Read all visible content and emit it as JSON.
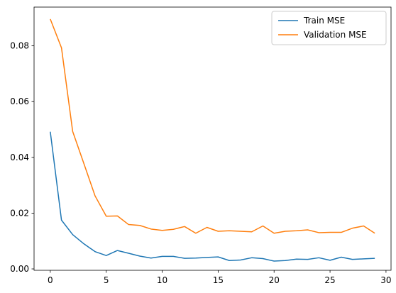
{
  "chart_data": {
    "type": "line",
    "title": "",
    "xlabel": "",
    "ylabel": "",
    "xlim": [
      -1.45,
      30.45
    ],
    "ylim": [
      -0.0005,
      0.0939
    ],
    "x_ticks": [
      0,
      5,
      10,
      15,
      20,
      25,
      30
    ],
    "y_ticks": [
      0.0,
      0.02,
      0.04,
      0.06,
      0.08
    ],
    "x_tick_labels": [
      "0",
      "5",
      "10",
      "15",
      "20",
      "25",
      "30"
    ],
    "y_tick_labels": [
      "0.00",
      "0.02",
      "0.04",
      "0.06",
      "0.08"
    ],
    "grid": false,
    "legend_position": "top-right",
    "x": [
      0,
      1,
      2,
      3,
      4,
      5,
      6,
      7,
      8,
      9,
      10,
      11,
      12,
      13,
      14,
      15,
      16,
      17,
      18,
      19,
      20,
      21,
      22,
      23,
      24,
      25,
      26,
      27,
      28,
      29
    ],
    "series": [
      {
        "name": "Train MSE",
        "color": "#1f77b4",
        "values": [
          0.0492,
          0.0175,
          0.0123,
          0.009,
          0.0062,
          0.0048,
          0.0066,
          0.0056,
          0.0046,
          0.0039,
          0.0045,
          0.0045,
          0.0038,
          0.0039,
          0.0041,
          0.0043,
          0.003,
          0.0032,
          0.004,
          0.0037,
          0.0028,
          0.003,
          0.0035,
          0.0034,
          0.004,
          0.0031,
          0.0042,
          0.0034,
          0.0036,
          0.0038
        ]
      },
      {
        "name": "Validation MSE",
        "color": "#ff7f0e",
        "values": [
          0.0896,
          0.0793,
          0.0493,
          0.0378,
          0.0262,
          0.0189,
          0.019,
          0.0159,
          0.0156,
          0.0143,
          0.0138,
          0.0142,
          0.0152,
          0.0128,
          0.0149,
          0.0135,
          0.0137,
          0.0135,
          0.0133,
          0.0154,
          0.0128,
          0.0135,
          0.0137,
          0.014,
          0.013,
          0.0131,
          0.0131,
          0.0146,
          0.0154,
          0.0128
        ]
      }
    ]
  }
}
